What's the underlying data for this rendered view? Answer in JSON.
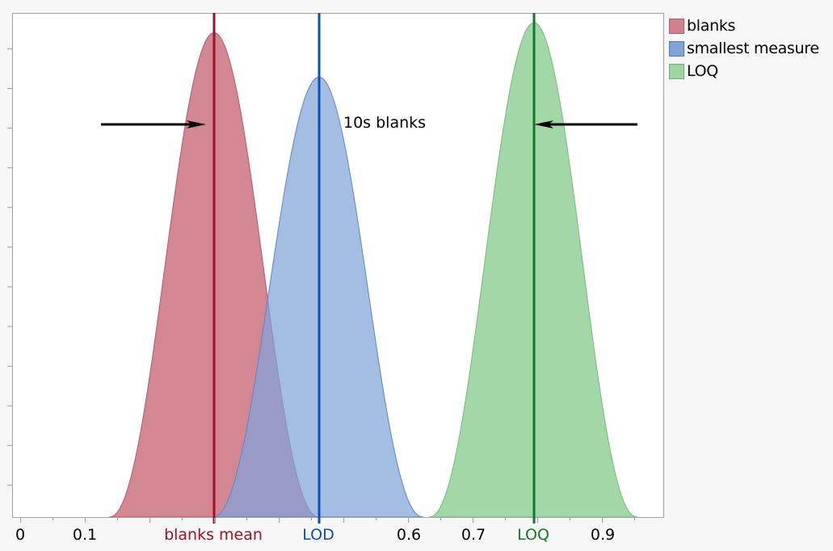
{
  "chart_data": {
    "type": "area",
    "title": "",
    "xlabel": "",
    "ylabel": "",
    "xlim": [
      -0.0125,
      1.0
    ],
    "ylim": [
      0,
      1.0
    ],
    "grid": false,
    "legend_position": "right",
    "x_ticks": [
      {
        "value": 0,
        "label": "0",
        "color": "#000000"
      },
      {
        "value": 0.1,
        "label": "0.1",
        "color": "#000000"
      },
      {
        "value": 0.3,
        "label": "blanks mean",
        "color": "#9b1228"
      },
      {
        "value": 0.4625,
        "label": "LOD",
        "color": "#0b4fb5"
      },
      {
        "value": 0.6,
        "label": "0.6",
        "color": "#000000"
      },
      {
        "value": 0.7,
        "label": "0.7",
        "color": "#000000"
      },
      {
        "value": 0.795,
        "label": "LOQ",
        "color": "#14772b"
      },
      {
        "value": 0.9,
        "label": "0.9",
        "color": "#000000"
      }
    ],
    "y_tick_count": 12,
    "series": [
      {
        "name": "blanks",
        "fill": "#d0818d",
        "stroke": "#b9566a",
        "x_start": 0.1375,
        "x_end": 0.4625,
        "peak_x": 0.3,
        "peak_height": 0.98
      },
      {
        "name": "smallest measure",
        "fill": "#7fa4d8",
        "stroke": "#5b86c8",
        "x_start": 0.2975,
        "x_end": 0.6237,
        "peak_x": 0.4625,
        "peak_height": 0.89
      },
      {
        "name": "LOQ",
        "fill": "#9dd6a3",
        "stroke": "#76b97d",
        "x_start": 0.6325,
        "x_end": 0.955,
        "peak_x": 0.795,
        "peak_height": 1.0
      }
    ],
    "overlap_color": "#6866a0",
    "vertical_lines": [
      {
        "name": "blanks mean",
        "x": 0.3,
        "color": "#9b1228"
      },
      {
        "name": "LOD",
        "x": 0.4625,
        "color": "#0b4fb5"
      },
      {
        "name": "LOQ",
        "x": 0.795,
        "color": "#14772b"
      }
    ],
    "annotations": [
      {
        "type": "arrow",
        "direction": "right",
        "from_x": 0.125,
        "to_x": 0.2875,
        "y_frac": 0.78
      },
      {
        "type": "arrow",
        "direction": "left",
        "from_x": 0.955,
        "to_x": 0.795,
        "y_frac": 0.78
      },
      {
        "type": "text",
        "text": "10s blanks",
        "x": 0.5,
        "y_frac": 0.78
      }
    ]
  },
  "legend": {
    "items": [
      {
        "label": "blanks",
        "fill": "#d0818d",
        "border": "#b9566a"
      },
      {
        "label": "smallest measure",
        "fill": "#7fa4d8",
        "border": "#4a78c0"
      },
      {
        "label": "LOQ",
        "fill": "#9dd6a3",
        "border": "#6aaf72"
      }
    ]
  },
  "annotation_text": "10s blanks",
  "x_labels": {
    "zero": "0",
    "p1": "0.1",
    "blanks_mean": "blanks mean",
    "lod": "LOD",
    "p6": "0.6",
    "p7": "0.7",
    "loq": "LOQ",
    "p9": "0.9"
  },
  "colors": {
    "axis": "#a0a0a0",
    "plot_bg": "#ffffff",
    "page_bg": "#f7f7f7"
  }
}
